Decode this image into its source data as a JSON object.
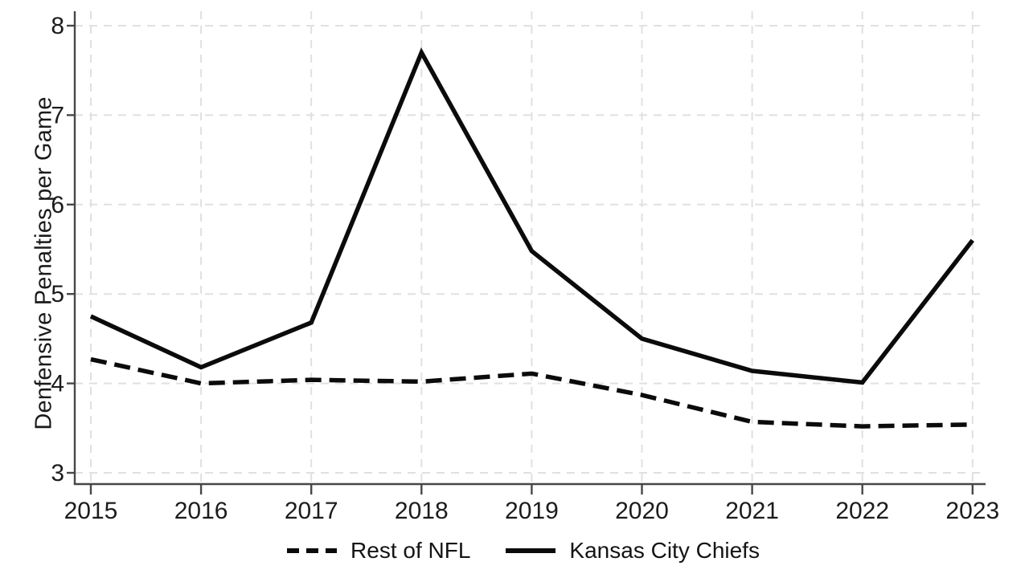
{
  "figure": {
    "background": "#ffffff",
    "text_color": "#1c1c1c",
    "axis_color": "#474747",
    "grid_color": "#e0e0e0",
    "line_color": "#0b0b0b"
  },
  "chart_data": {
    "type": "line",
    "title": "",
    "xlabel": "",
    "ylabel": "Denfensive Penalties per Game",
    "x": [
      2015,
      2016,
      2017,
      2018,
      2019,
      2020,
      2021,
      2022,
      2023
    ],
    "series": [
      {
        "name": "Rest of NFL",
        "line_style": "dashed",
        "color": "#0b0b0b",
        "values": [
          4.27,
          4.0,
          4.04,
          4.02,
          4.11,
          3.87,
          3.57,
          3.52,
          3.54
        ]
      },
      {
        "name": "Kansas City Chiefs",
        "line_style": "solid",
        "color": "#0b0b0b",
        "values": [
          4.75,
          4.18,
          4.68,
          7.7,
          5.48,
          4.5,
          4.14,
          4.01,
          5.6
        ]
      }
    ],
    "ylim": [
      3,
      8
    ],
    "yticks": [
      3,
      4,
      5,
      6,
      7,
      8
    ],
    "grid": "horizontal and vertical, light gray dashed",
    "legend_position": "bottom center"
  }
}
